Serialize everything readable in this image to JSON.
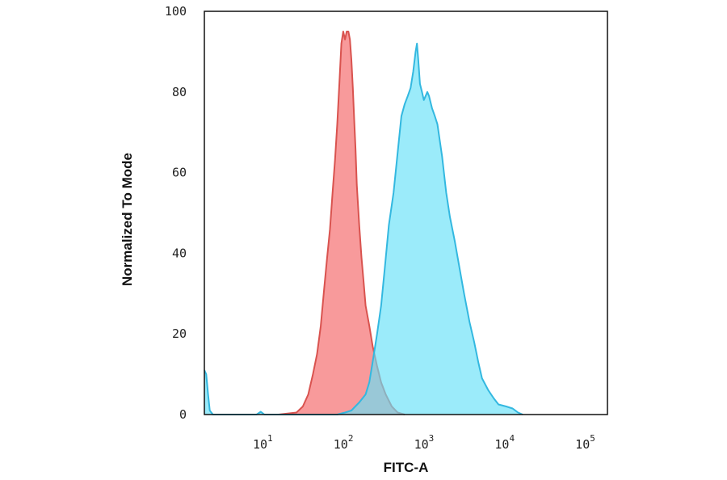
{
  "chart_data": {
    "type": "area",
    "xlabel": "FITC-A",
    "ylabel": "Normalized To Mode",
    "xscale": "log",
    "xlim": [
      1.8,
      180000
    ],
    "ylim": [
      0,
      100
    ],
    "y_ticks": [
      {
        "value": 0,
        "label": "0"
      },
      {
        "value": 20,
        "label": "20"
      },
      {
        "value": 40,
        "label": "40"
      },
      {
        "value": 60,
        "label": "60"
      },
      {
        "value": 80,
        "label": "80"
      },
      {
        "value": 100,
        "label": "100"
      }
    ],
    "x_ticks": [
      {
        "value": 10,
        "base": "10",
        "exp": "1"
      },
      {
        "value": 100,
        "base": "10",
        "exp": "2"
      },
      {
        "value": 1000,
        "base": "10",
        "exp": "3"
      },
      {
        "value": 10000,
        "base": "10",
        "exp": "4"
      },
      {
        "value": 100000,
        "base": "10",
        "exp": "5"
      }
    ],
    "grid": false,
    "legend": "none",
    "series": [
      {
        "color": "#d9534f",
        "fill": "#f7888a",
        "points": [
          [
            15,
            0
          ],
          [
            25,
            0.5
          ],
          [
            30,
            2
          ],
          [
            35,
            5
          ],
          [
            40,
            10
          ],
          [
            45,
            15
          ],
          [
            50,
            22
          ],
          [
            55,
            31
          ],
          [
            60,
            39
          ],
          [
            65,
            46
          ],
          [
            70,
            55
          ],
          [
            75,
            63
          ],
          [
            80,
            72
          ],
          [
            85,
            82
          ],
          [
            90,
            92
          ],
          [
            95,
            95
          ],
          [
            100,
            93
          ],
          [
            105,
            95
          ],
          [
            110,
            95
          ],
          [
            115,
            93
          ],
          [
            120,
            88
          ],
          [
            125,
            81
          ],
          [
            130,
            73
          ],
          [
            135,
            66
          ],
          [
            140,
            57
          ],
          [
            150,
            47
          ],
          [
            160,
            39
          ],
          [
            170,
            33
          ],
          [
            180,
            27
          ],
          [
            200,
            22
          ],
          [
            220,
            17
          ],
          [
            250,
            12
          ],
          [
            280,
            8
          ],
          [
            320,
            5
          ],
          [
            380,
            2
          ],
          [
            450,
            0.5
          ],
          [
            550,
            0
          ]
        ]
      },
      {
        "color": "#33b8e0",
        "fill": "#66e0f8",
        "points": [
          [
            1.8,
            11
          ],
          [
            1.9,
            10
          ],
          [
            2.0,
            5
          ],
          [
            2.1,
            1
          ],
          [
            2.3,
            0
          ],
          [
            8,
            0
          ],
          [
            9,
            0.7
          ],
          [
            10,
            0
          ],
          [
            80,
            0
          ],
          [
            100,
            0.5
          ],
          [
            120,
            1
          ],
          [
            150,
            3
          ],
          [
            180,
            5
          ],
          [
            200,
            8
          ],
          [
            220,
            13
          ],
          [
            250,
            20
          ],
          [
            280,
            27
          ],
          [
            310,
            36
          ],
          [
            350,
            47
          ],
          [
            400,
            55
          ],
          [
            450,
            65
          ],
          [
            500,
            74
          ],
          [
            550,
            77
          ],
          [
            600,
            79
          ],
          [
            650,
            81
          ],
          [
            700,
            85
          ],
          [
            750,
            90
          ],
          [
            780,
            92
          ],
          [
            810,
            88
          ],
          [
            850,
            82
          ],
          [
            900,
            80
          ],
          [
            950,
            78
          ],
          [
            1000,
            79
          ],
          [
            1050,
            80
          ],
          [
            1100,
            79
          ],
          [
            1200,
            76
          ],
          [
            1300,
            74
          ],
          [
            1400,
            72
          ],
          [
            1600,
            64
          ],
          [
            1800,
            55
          ],
          [
            2000,
            49
          ],
          [
            2300,
            43
          ],
          [
            2600,
            37
          ],
          [
            3000,
            30
          ],
          [
            3500,
            23
          ],
          [
            4000,
            18
          ],
          [
            4500,
            13
          ],
          [
            5000,
            9
          ],
          [
            6000,
            6
          ],
          [
            7000,
            4
          ],
          [
            8000,
            2.5
          ],
          [
            10000,
            2
          ],
          [
            12000,
            1.5
          ],
          [
            14000,
            0.5
          ],
          [
            16000,
            0
          ]
        ]
      }
    ]
  }
}
